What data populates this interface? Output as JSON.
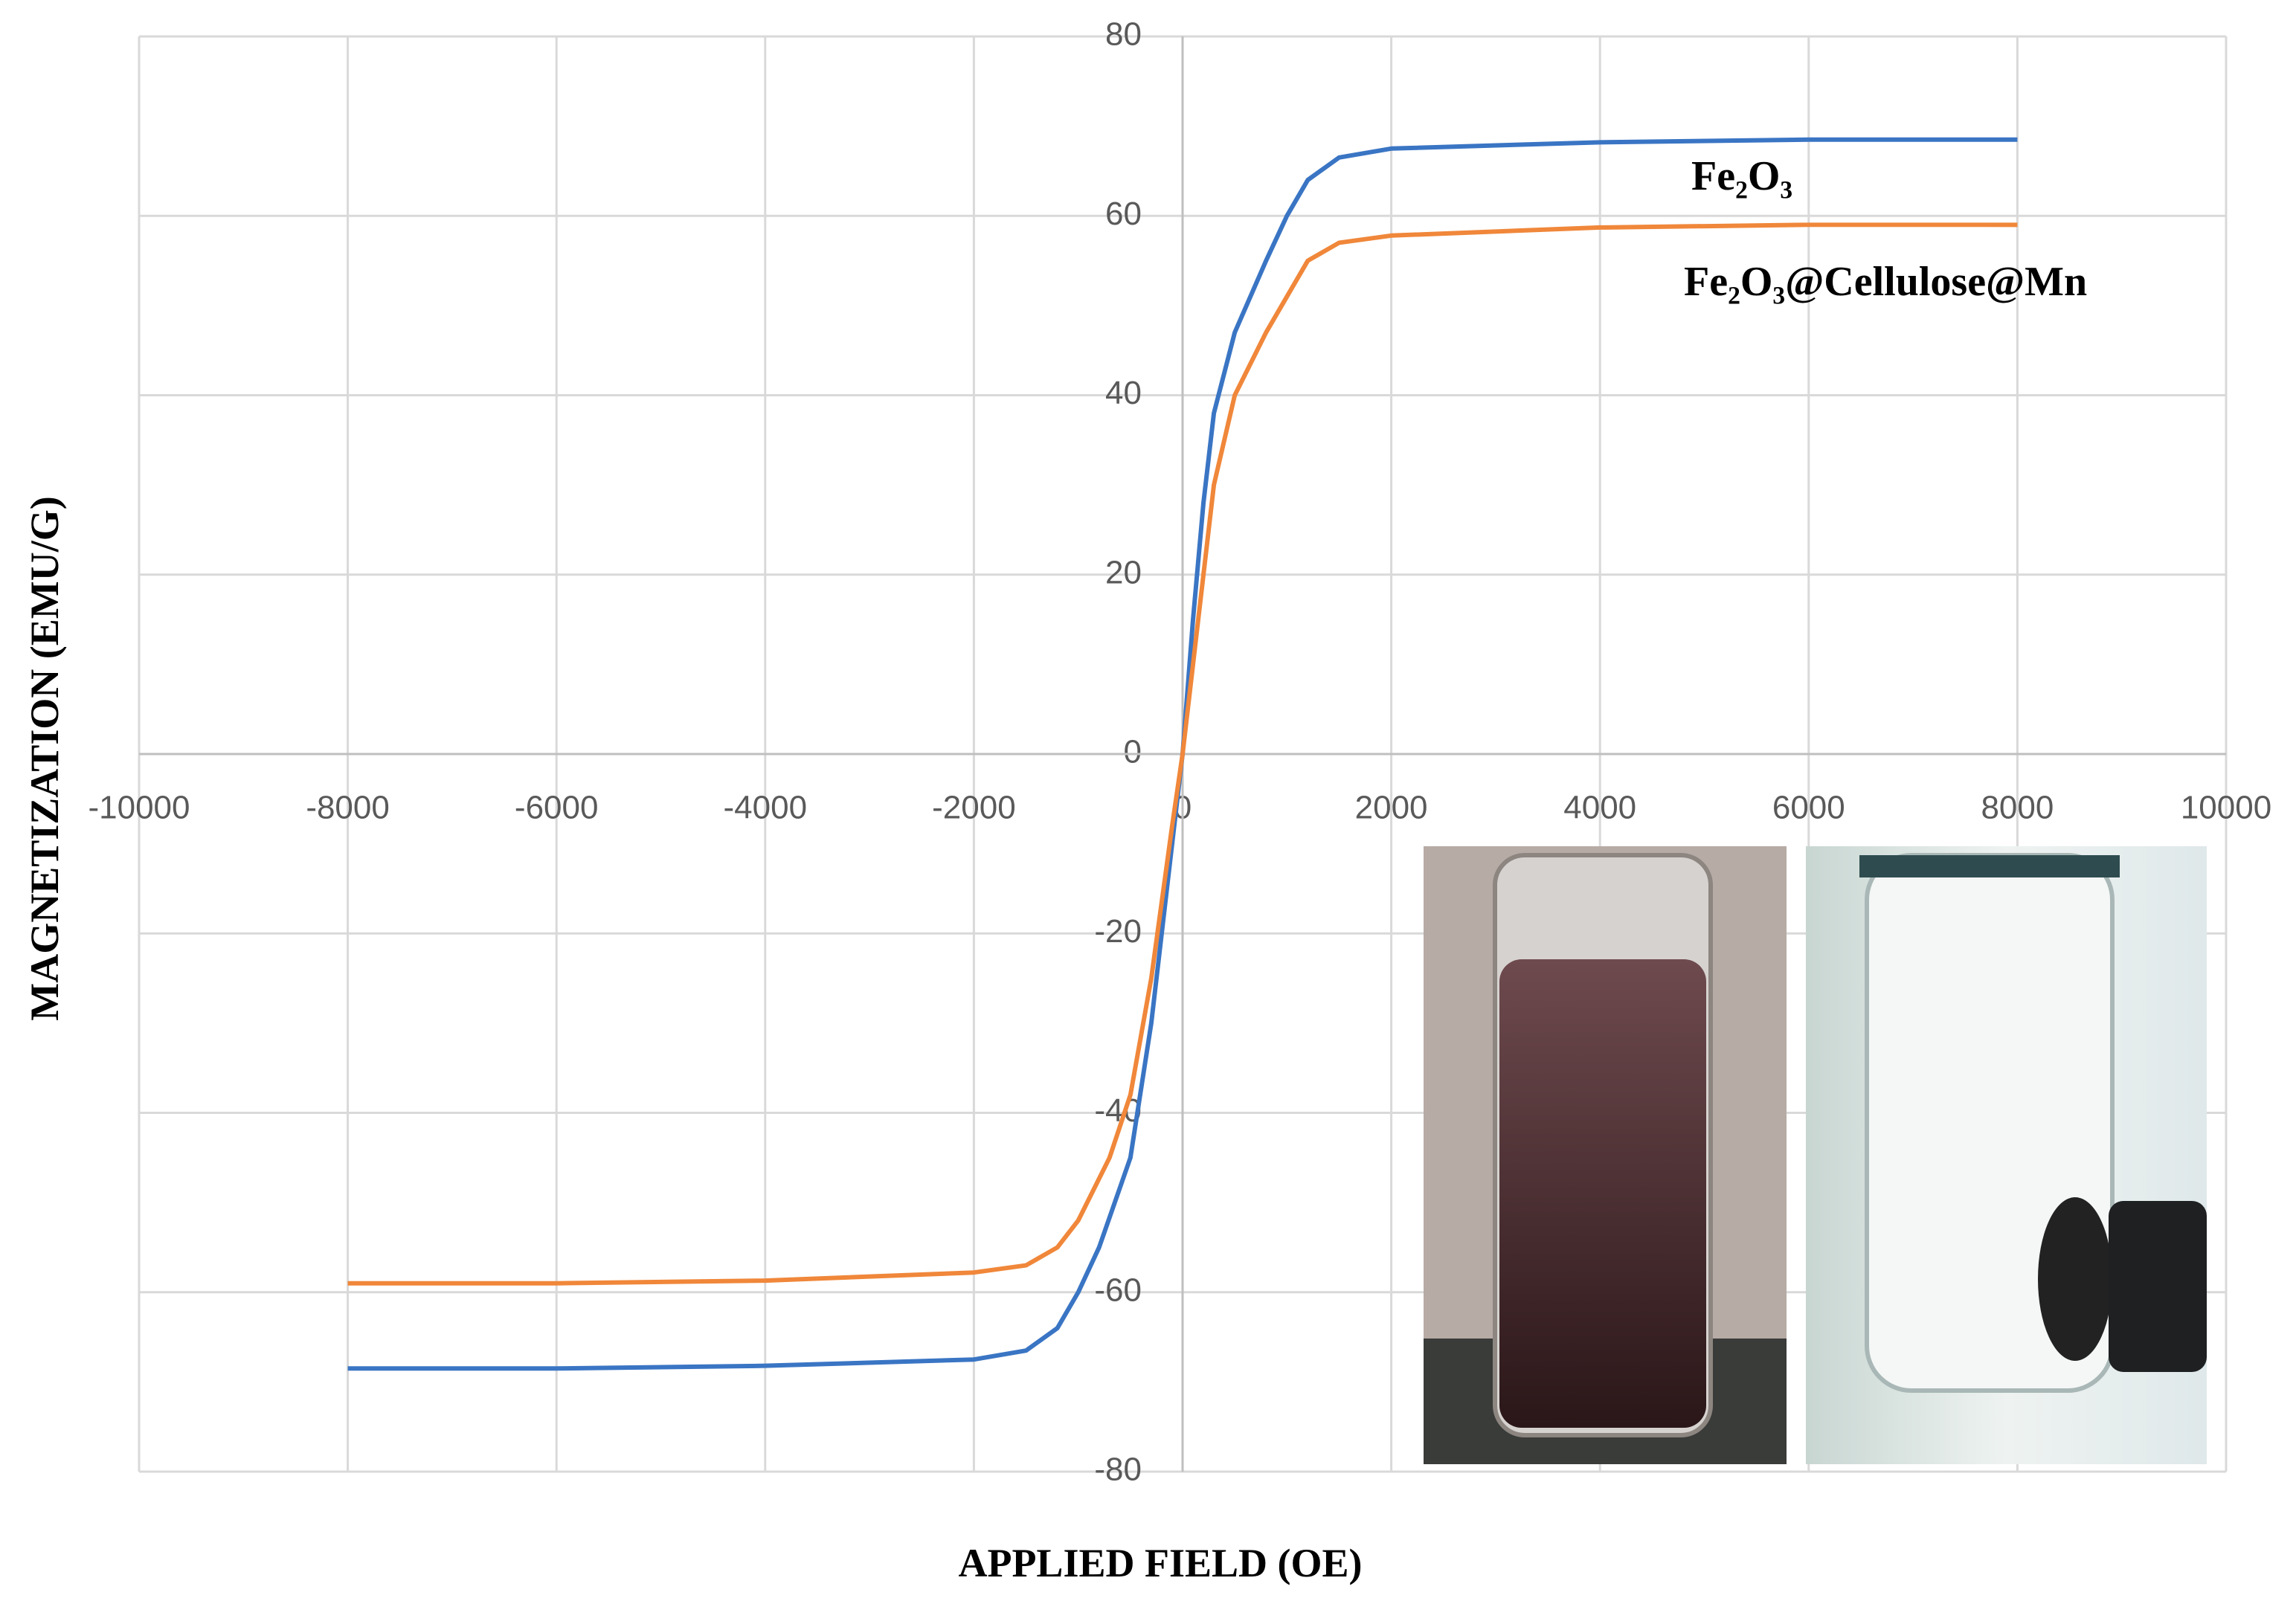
{
  "chart_data": {
    "type": "line",
    "x_label": "APPLIED FIELD (OE)",
    "y_label": "MAGNETIZATION (EMU/G)",
    "xlim": [
      -10000,
      10000
    ],
    "xticks": [
      -10000,
      -8000,
      -6000,
      -4000,
      -2000,
      0,
      2000,
      4000,
      6000,
      8000,
      10000
    ],
    "ylim": [
      -80,
      80
    ],
    "yticks": [
      -80,
      -60,
      -40,
      -20,
      0,
      20,
      40,
      60,
      80
    ],
    "grid": true,
    "series": [
      {
        "name": "Fe₂O₃",
        "color": "#3a75c4",
        "x": [
          -8000,
          -6000,
          -4000,
          -2000,
          -1500,
          -1200,
          -1000,
          -800,
          -500,
          -300,
          -100,
          0,
          100,
          200,
          300,
          500,
          800,
          1000,
          1200,
          1500,
          2000,
          4000,
          6000,
          8000
        ],
        "values": [
          -68.5,
          -68.5,
          -68.2,
          -67.5,
          -66.5,
          -64,
          -60,
          -55,
          -45,
          -30,
          -10,
          0,
          15,
          28,
          38,
          47,
          55,
          60,
          64,
          66.5,
          67.5,
          68.2,
          68.5,
          68.5
        ]
      },
      {
        "name": "Fe₂O₃@Cellulose@Mn",
        "color": "#f0873a",
        "x": [
          -8000,
          -6000,
          -4000,
          -2000,
          -1500,
          -1200,
          -1000,
          -700,
          -500,
          -300,
          -100,
          0,
          100,
          300,
          500,
          800,
          1000,
          1200,
          1500,
          2000,
          4000,
          6000,
          8000
        ],
        "values": [
          -59,
          -59,
          -58.7,
          -57.8,
          -57,
          -55,
          -52,
          -45,
          -38,
          -25,
          -8,
          0,
          10,
          30,
          40,
          47,
          51,
          55,
          57,
          57.8,
          58.7,
          59,
          59
        ]
      }
    ]
  }
}
